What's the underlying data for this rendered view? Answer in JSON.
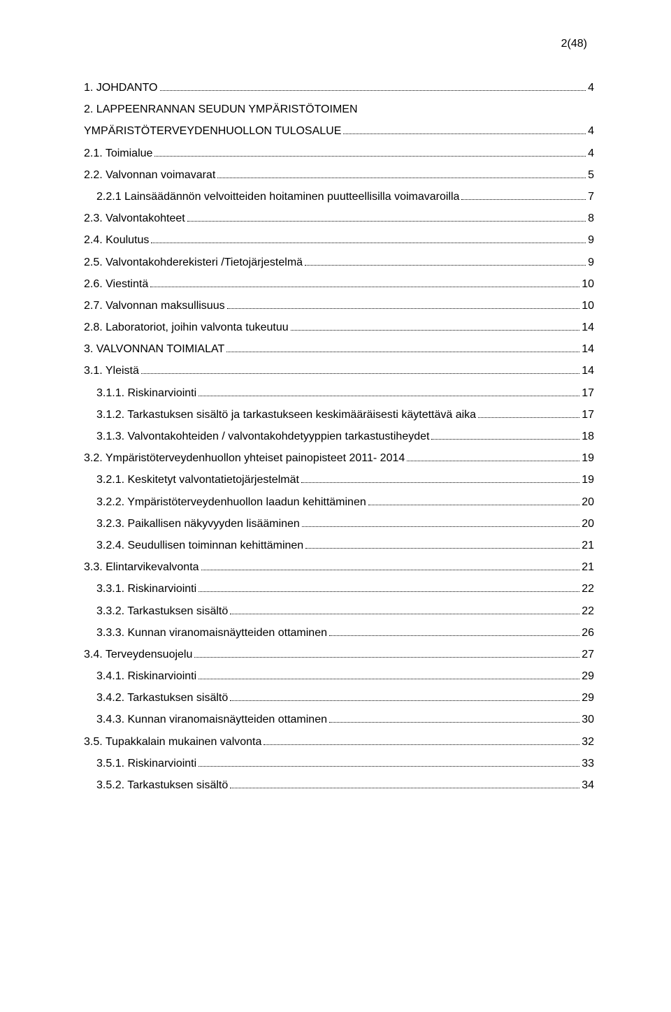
{
  "page_label": "2(48)",
  "toc": [
    {
      "indent": 0,
      "label": "1. JOHDANTO",
      "page": "4"
    },
    {
      "indent": 0,
      "label": "2. LAPPEENRANNAN SEUDUN YMPÄRISTÖTOIMEN",
      "page": ""
    },
    {
      "indent": 0,
      "label": "YMPÄRISTÖTERVEYDENHUOLLON TULOSALUE",
      "page": "4"
    },
    {
      "indent": 0,
      "label": "2.1. Toimialue",
      "page": "4"
    },
    {
      "indent": 0,
      "label": "2.2. Valvonnan voimavarat",
      "page": "5"
    },
    {
      "indent": 1,
      "label": "2.2.1 Lainsäädännön velvoitteiden hoitaminen puutteellisilla voimavaroilla",
      "page": "7"
    },
    {
      "indent": 0,
      "label": "2.3. Valvontakohteet",
      "page": "8"
    },
    {
      "indent": 0,
      "label": "2.4. Koulutus",
      "page": "9"
    },
    {
      "indent": 0,
      "label": "2.5. Valvontakohderekisteri /Tietojärjestelmä",
      "page": "9"
    },
    {
      "indent": 0,
      "label": "2.6. Viestintä",
      "page": "10"
    },
    {
      "indent": 0,
      "label": "2.7. Valvonnan maksullisuus",
      "page": "10"
    },
    {
      "indent": 0,
      "label": "2.8. Laboratoriot, joihin valvonta tukeutuu",
      "page": "14"
    },
    {
      "indent": 0,
      "label": "3. VALVONNAN TOIMIALAT",
      "page": "14"
    },
    {
      "indent": 0,
      "label": "3.1. Yleistä",
      "page": "14"
    },
    {
      "indent": 1,
      "label": "3.1.1. Riskinarviointi",
      "page": "17"
    },
    {
      "indent": 1,
      "label": "3.1.2. Tarkastuksen sisältö ja tarkastukseen keskimääräisesti käytettävä aika",
      "page": "17"
    },
    {
      "indent": 1,
      "label": "3.1.3. Valvontakohteiden / valvontakohdetyyppien tarkastustiheydet",
      "page": "18"
    },
    {
      "indent": 0,
      "label": "3.2. Ympäristöterveydenhuollon yhteiset painopisteet 2011- 2014",
      "page": "19"
    },
    {
      "indent": 1,
      "label": "3.2.1. Keskitetyt valvontatietojärjestelmät",
      "page": "19"
    },
    {
      "indent": 1,
      "label": "3.2.2. Ympäristöterveydenhuollon laadun kehittäminen",
      "page": "20"
    },
    {
      "indent": 1,
      "label": "3.2.3. Paikallisen näkyvyyden lisääminen",
      "page": "20"
    },
    {
      "indent": 1,
      "label": "3.2.4. Seudullisen toiminnan kehittäminen",
      "page": "21"
    },
    {
      "indent": 0,
      "label": "3.3. Elintarvikevalvonta",
      "page": "21"
    },
    {
      "indent": 1,
      "label": "3.3.1. Riskinarviointi",
      "page": "22"
    },
    {
      "indent": 1,
      "label": "3.3.2. Tarkastuksen sisältö",
      "page": "22"
    },
    {
      "indent": 1,
      "label": "3.3.3. Kunnan viranomaisnäytteiden ottaminen",
      "page": "26"
    },
    {
      "indent": 0,
      "label": "3.4. Terveydensuojelu",
      "page": "27"
    },
    {
      "indent": 1,
      "label": "3.4.1. Riskinarviointi",
      "page": "29"
    },
    {
      "indent": 1,
      "label": "3.4.2. Tarkastuksen sisältö",
      "page": "29"
    },
    {
      "indent": 1,
      "label": "3.4.3. Kunnan viranomaisnäytteiden ottaminen",
      "page": "30"
    },
    {
      "indent": 0,
      "label": "3.5. Tupakkalain mukainen valvonta",
      "page": "32"
    },
    {
      "indent": 1,
      "label": "3.5.1. Riskinarviointi",
      "page": "33"
    },
    {
      "indent": 1,
      "label": "3.5.2. Tarkastuksen sisältö",
      "page": "34"
    }
  ]
}
